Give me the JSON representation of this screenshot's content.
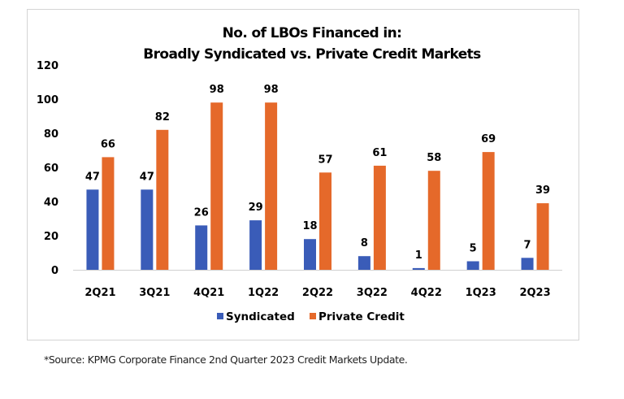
{
  "chart_data": {
    "type": "bar",
    "title": [
      "No. of LBOs Financed in:",
      "Broadly Syndicated vs. Private Credit Markets"
    ],
    "xlabel": "",
    "ylabel": "",
    "categories": [
      "2Q21",
      "3Q21",
      "4Q21",
      "1Q22",
      "2Q22",
      "3Q22",
      "4Q22",
      "1Q23",
      "2Q23"
    ],
    "series": [
      {
        "name": "Syndicated",
        "color": "#3a5cb8",
        "values": [
          47,
          47,
          26,
          29,
          18,
          8,
          1,
          5,
          7
        ]
      },
      {
        "name": "Private Credit",
        "color": "#e5692a",
        "values": [
          66,
          82,
          98,
          98,
          57,
          61,
          58,
          69,
          39
        ]
      }
    ],
    "ylim": [
      0,
      120
    ],
    "yticks": [
      0,
      20,
      40,
      60,
      80,
      100,
      120
    ],
    "grid": false,
    "data_labels": true,
    "legend": {
      "placement": "bottom"
    }
  },
  "footnote": "*Source: KPMG Corporate Finance 2nd Quarter 2023 Credit Markets Update."
}
